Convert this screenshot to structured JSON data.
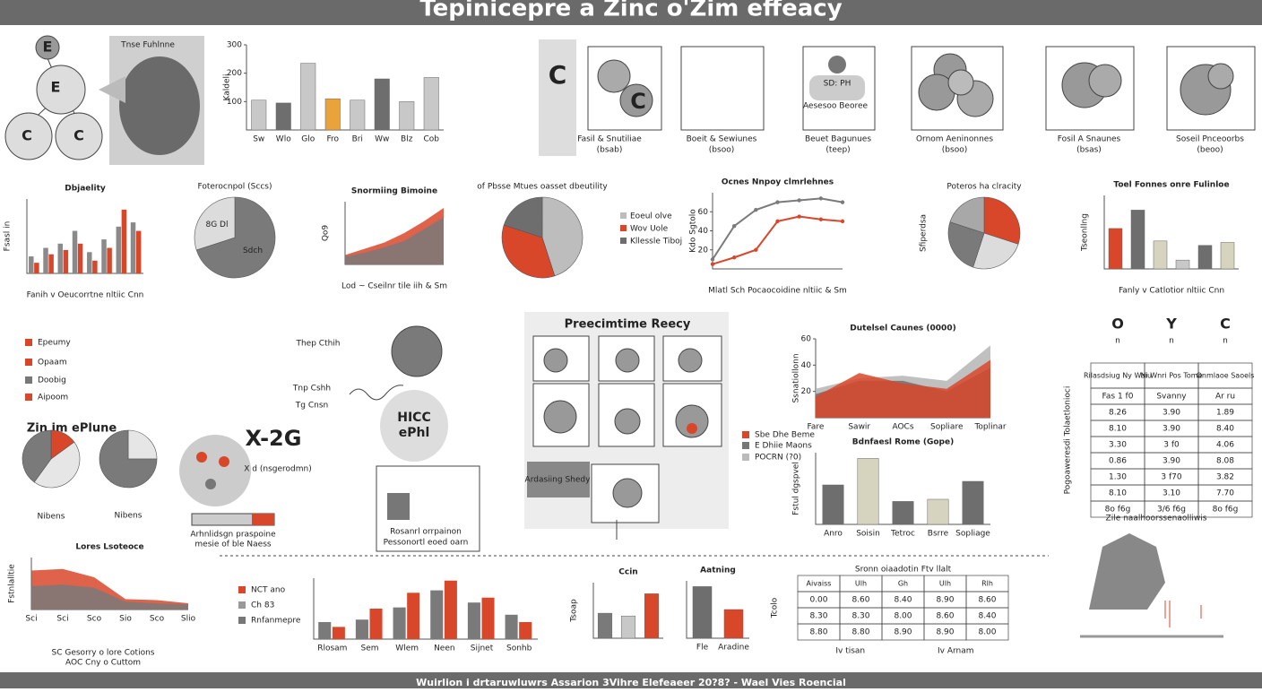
{
  "header": {
    "title": "Tepinicepre a Zinc o'Zim effeacy"
  },
  "footer": {
    "text": "Wuirlion i drtaruwluwrs Assarion 3Vihre Elefeaeer 20?8? - Wael Vies Roencial"
  },
  "labels": [
    "Tnse Fuhlnne",
    "E",
    "E",
    "C",
    "C",
    "Fasil & Snutiliae",
    "(bsab)",
    "Boeit & Sewiunes",
    "(bsoo)",
    "Beuet Bagunues",
    "(teep)",
    "Ornom Aeninonnes",
    "(bsoo)",
    "Fosil A Snaunes",
    "(bsas)",
    "Soseil Pnceoorbs",
    "(beoo)",
    "SD: PH",
    "Aesesoo Beoree",
    "Preecimtime Reecy",
    "X-2G",
    "HICC",
    "ePhl",
    "Zin im ePlune",
    "Epeumy",
    "Opaam",
    "Doobig",
    "Aipoom",
    "Thep Cthih",
    "Tnp Cshh",
    "Tg Cnsn",
    "Ardasiing Shedy",
    "Zile naalhoorssenaolliwis",
    "Arhnlidsgn praspoine",
    "mesie of ble Naess",
    "Nibens",
    "Nibens",
    "NCT ano",
    "Ch 83",
    "Rnfanmepre",
    "Rosanrl orrpainon",
    "Pessonortl eoed oarn",
    "X d (nsgerodmn)",
    "SC Gesorry o lore Cotions",
    "AOC Cny o Cuttom",
    "C",
    "C",
    "Sbe Dhe Beme",
    "E Dhiie Maons",
    "POCRN (?0)"
  ],
  "charts": [
    {
      "type": "bar",
      "ylabel": "Kaldeli",
      "categories": [
        "Sw",
        "Wlo",
        "Glo",
        "Fro",
        "Bri",
        "Ww",
        "Blz",
        "Cob"
      ],
      "values": [
        105,
        95,
        235,
        110,
        105,
        180,
        100,
        185
      ],
      "colors": [
        "#c8c8c8",
        "#6e6e6e",
        "#c8c8c8",
        "#e8a33a",
        "#c8c8c8",
        "#6e6e6e",
        "#c8c8c8",
        "#c8c8c8"
      ],
      "ylim": [
        0,
        300
      ],
      "yticks": [
        100,
        200,
        300
      ]
    },
    {
      "type": "bar",
      "title": "Dbjaelity",
      "xlabel": "Fanih v Oeucorrtne nltiic Cnn",
      "ylabel": "Fsasl in",
      "series": [
        {
          "color": "#8a8a8a",
          "values": [
            8,
            12,
            14,
            20,
            10,
            16,
            22,
            24
          ]
        },
        {
          "color": "#d9472b",
          "values": [
            5,
            9,
            11,
            14,
            6,
            12,
            30,
            20
          ]
        }
      ],
      "ylim": [
        0,
        35
      ]
    },
    {
      "type": "pie",
      "title": "Foterocnpol (Sccs)",
      "values": [
        70,
        30
      ],
      "colors": [
        "#7a7a7a",
        "#dcdcdc"
      ],
      "labels": [
        "Sdch",
        "8G Dl"
      ]
    },
    {
      "type": "area",
      "title": "Snormiing Bimoine",
      "xlabel": "Lod ~ Cseilnr tile iih & Sm",
      "ylabel": "Qo9",
      "series": [
        {
          "color": "#d9472b",
          "values": [
            12,
            20,
            28,
            40,
            55,
            72
          ]
        },
        {
          "color": "#7a7a7a",
          "values": [
            10,
            15,
            22,
            30,
            45,
            60
          ]
        }
      ],
      "ylim": [
        0,
        80
      ]
    },
    {
      "type": "pie",
      "title": "of Pbsse Mtues oasset dbeutility",
      "values": [
        45,
        35,
        20
      ],
      "colors": [
        "#bdbdbd",
        "#d9472b",
        "#6e6e6e"
      ],
      "legend": [
        "Eoeul olve",
        "Wov Uole",
        "Kllessle Tiboj"
      ]
    },
    {
      "type": "line",
      "title": "Ocnes Nnpoy clmrlehnes",
      "xlabel": "Mlatl Sch Pocaocoidine nltiic & Sm",
      "ylabel": "Kdo Sgtolo",
      "series": [
        {
          "color": "#7a7a7a",
          "values": [
            10,
            45,
            62,
            70,
            72,
            74,
            70
          ]
        },
        {
          "color": "#d9472b",
          "values": [
            5,
            12,
            20,
            50,
            55,
            52,
            50
          ]
        }
      ],
      "ylim": [
        0,
        80
      ],
      "yticks": [
        20,
        40,
        60
      ]
    },
    {
      "type": "pie",
      "title": "Poteros ha clracity",
      "ylabel": "Sfiperdsa",
      "values": [
        30,
        25,
        25,
        20
      ],
      "colors": [
        "#d9472b",
        "#dcdcdc",
        "#7a7a7a",
        "#a8a8a8"
      ]
    },
    {
      "type": "bar",
      "title": "Toel Fonnes onre Fulinloe",
      "xlabel": "Fanly v Catlotior nltiic Cnn",
      "ylabel": "Tseonllng",
      "values": [
        55,
        80,
        38,
        12,
        32,
        36
      ],
      "colors": [
        "#d9472b",
        "#6e6e6e",
        "#d6d4bf",
        "#c8c8c8",
        "#6e6e6e",
        "#d6d4bf"
      ],
      "ylim": [
        0,
        100
      ]
    },
    {
      "type": "area",
      "title": "Dutelsel Caunes (0000)",
      "ylabel": "Ssnatiollonn",
      "categories": [
        "Fare",
        "Sawir",
        "AOCs",
        "Sopliare",
        "Toplinar"
      ],
      "series": [
        {
          "color": "#b5b5b5",
          "values": [
            22,
            30,
            32,
            28,
            55
          ]
        },
        {
          "color": "#6e6e6e",
          "values": [
            18,
            28,
            28,
            20,
            38
          ]
        },
        {
          "color": "#d9472b",
          "values": [
            16,
            34,
            26,
            22,
            44
          ]
        }
      ],
      "ylim": [
        0,
        60
      ],
      "yticks": [
        20,
        40,
        60
      ]
    },
    {
      "type": "bar",
      "title": "Bdnfaesl Rome (Gope)",
      "ylabel": "Fstul dgspvel",
      "categories": [
        "Anro",
        "Soisin",
        "Tetroc",
        "Bsrre",
        "Sopliage"
      ],
      "values": [
        55,
        92,
        32,
        35,
        60
      ],
      "colors": [
        "#6e6e6e",
        "#d6d4bf",
        "#6e6e6e",
        "#d6d4bf",
        "#6e6e6e"
      ],
      "ylim": [
        0,
        100
      ]
    },
    {
      "type": "area",
      "title": "Lores Lsoteoce",
      "ylabel": "Fstnlalltie",
      "categories": [
        "Sci",
        "Sci",
        "Sco",
        "Sio",
        "Sco",
        "Slio"
      ],
      "series": [
        {
          "color": "#d9472b",
          "values": [
            75,
            78,
            62,
            20,
            18,
            12
          ]
        },
        {
          "color": "#7a7a7a",
          "values": [
            45,
            48,
            42,
            15,
            12,
            10
          ]
        }
      ],
      "ylim": [
        0,
        100
      ]
    },
    {
      "type": "bar",
      "categories": [
        "Rlosam",
        "Sem",
        "Wlem",
        "Neen",
        "Sijnet",
        "Sonhb"
      ],
      "series": [
        {
          "color": "#7a7a7a",
          "values": [
            14,
            16,
            26,
            40,
            30,
            20
          ]
        },
        {
          "color": "#d9472b",
          "values": [
            10,
            25,
            38,
            48,
            34,
            14
          ]
        }
      ],
      "ylim": [
        0,
        50
      ]
    },
    {
      "type": "bar",
      "title": "Ccin",
      "ylabel": "Tsoap",
      "values": [
        45,
        40,
        80
      ],
      "colors": [
        "#7a7a7a",
        "#c8c8c8",
        "#d9472b"
      ],
      "ylim": [
        0,
        100
      ]
    },
    {
      "type": "bar",
      "title": "Aatning",
      "categories": [
        "Fle",
        "Aradine"
      ],
      "values": [
        90,
        50
      ],
      "colors": [
        "#6e6e6e",
        "#d9472b"
      ],
      "ylim": [
        0,
        100
      ]
    },
    {
      "type": "pie",
      "values": [
        15,
        45,
        40
      ],
      "colors": [
        "#d9472b",
        "#e6e6e6",
        "#7a7a7a"
      ]
    },
    {
      "type": "pie",
      "values": [
        25,
        75
      ],
      "colors": [
        "#e6e6e6",
        "#7a7a7a"
      ]
    }
  ],
  "tables": [
    {
      "header": [
        "O",
        "Y",
        "C"
      ],
      "subheader": [
        "n",
        "n",
        "n"
      ],
      "ylabel": "Pogoaweresdi Tolaetlonioci",
      "rows": [
        [
          "Rilasdsiug Ny Waiu",
          "Ni Wnri Pos Tome",
          "Onmlaoe Saoels"
        ],
        [
          "Fas 1 f0",
          "Svanny",
          "Ar ru"
        ],
        [
          "8.26",
          "3.90",
          "1.89"
        ],
        [
          "8.10",
          "3.90",
          "8.40"
        ],
        [
          "3.30",
          "3 f0",
          "4.06"
        ],
        [
          "0.86",
          "3.90",
          "8.08"
        ],
        [
          "1.30",
          "3 f70",
          "3.82"
        ],
        [
          "8.10",
          "3.10",
          "7.70"
        ],
        [
          "8o f6g",
          "3/6 f6g",
          "8o f6g"
        ]
      ]
    },
    {
      "title": "Sronn oiaadotin Ftv llalt",
      "ylabel": "Tcolo",
      "rows": [
        [
          "Aivaiss",
          "Ulh",
          "Gh",
          "Ulh",
          "Rlh"
        ],
        [
          "0.00",
          "8.60",
          "8.40",
          "8.90",
          "8.60"
        ],
        [
          "8.30",
          "8.30",
          "8.00",
          "8.60",
          "8.40"
        ],
        [
          "8.80",
          "8.80",
          "8.90",
          "8.90",
          "8.00"
        ]
      ],
      "footer": [
        "Iv tisan",
        "Iv Arnam"
      ]
    }
  ]
}
